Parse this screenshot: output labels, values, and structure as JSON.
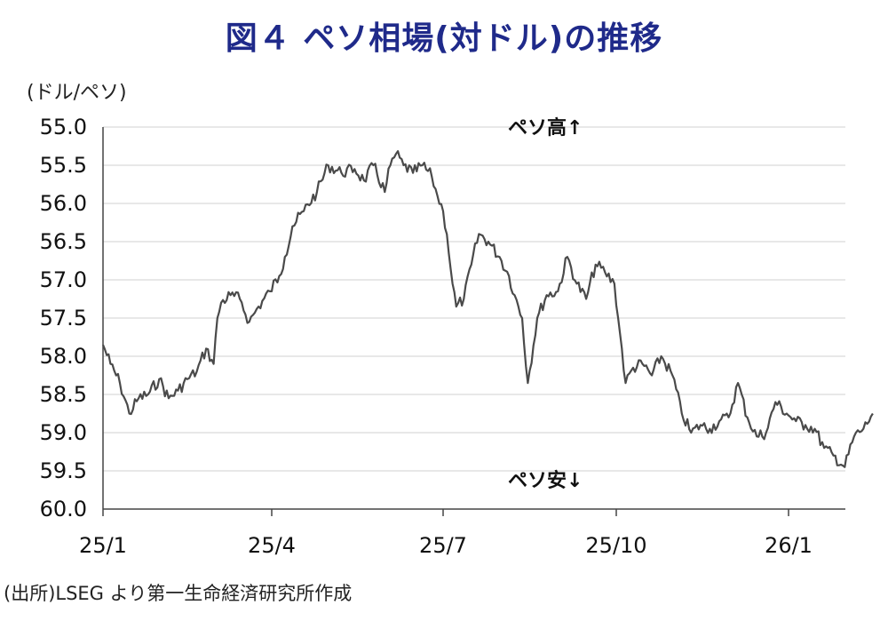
{
  "title": "図４ ペソ相場(対ドル)の推移",
  "unit_label": "(ドル/ペソ)",
  "source": "(出所)LSEG より第一生命経済研究所作成",
  "chart_data": {
    "type": "line",
    "title": "図４ ペソ相場(対ドル)の推移",
    "ylabel": "(ドル/ペソ)",
    "xlabel": "",
    "y_inverted": true,
    "ylim": [
      55.0,
      60.0
    ],
    "y_ticks": [
      "55.0",
      "55.5",
      "56.0",
      "56.5",
      "57.0",
      "57.5",
      "58.0",
      "58.5",
      "59.0",
      "59.5",
      "60.0"
    ],
    "x_ticks": [
      "25/1",
      "25/4",
      "25/7",
      "25/10",
      "26/1"
    ],
    "grid": "horizontal",
    "line_color": "#4a4a4a",
    "annotations": {
      "top": "ペソ高↑",
      "bottom": "ペソ安↓"
    },
    "series": [
      {
        "x": [
          "2025-01-01",
          "2025-01-05",
          "2025-01-10",
          "2025-01-15",
          "2025-01-20",
          "2025-01-25",
          "2025-01-31",
          "2025-02-05",
          "2025-02-10",
          "2025-02-15",
          "2025-02-20",
          "2025-02-25",
          "2025-03-01",
          "2025-03-03",
          "2025-03-05",
          "2025-03-10",
          "2025-03-15",
          "2025-03-20",
          "2025-03-25",
          "2025-03-31",
          "2025-04-05",
          "2025-04-08",
          "2025-04-12",
          "2025-04-18",
          "2025-04-25",
          "2025-05-01",
          "2025-05-08",
          "2025-05-15",
          "2025-05-20",
          "2025-05-25",
          "2025-05-31",
          "2025-06-03",
          "2025-06-06",
          "2025-06-10",
          "2025-06-15",
          "2025-06-20",
          "2025-06-25",
          "2025-06-28",
          "2025-07-01",
          "2025-07-03",
          "2025-07-06",
          "2025-07-08",
          "2025-07-12",
          "2025-07-16",
          "2025-07-20",
          "2025-07-25",
          "2025-07-31",
          "2025-08-05",
          "2025-08-08",
          "2025-08-12",
          "2025-08-15",
          "2025-08-20",
          "2025-08-25",
          "2025-08-31",
          "2025-09-05",
          "2025-09-10",
          "2025-09-15",
          "2025-09-20",
          "2025-09-25",
          "2025-09-30",
          "2025-10-03",
          "2025-10-06",
          "2025-10-10",
          "2025-10-15",
          "2025-10-20",
          "2025-10-25",
          "2025-10-31",
          "2025-11-05",
          "2025-11-10",
          "2025-11-15",
          "2025-11-20",
          "2025-11-25",
          "2025-11-30",
          "2025-12-05",
          "2025-12-10",
          "2025-12-15",
          "2025-12-20",
          "2025-12-25",
          "2025-12-31",
          "2026-01-05",
          "2026-01-10",
          "2026-01-15",
          "2026-01-20",
          "2026-01-25",
          "2026-01-31",
          "2026-02-05",
          "2026-02-10",
          "2026-02-15"
        ],
        "values": [
          57.85,
          58.1,
          58.35,
          58.75,
          58.55,
          58.5,
          58.3,
          58.55,
          58.45,
          58.3,
          58.2,
          57.9,
          58.1,
          57.5,
          57.3,
          57.2,
          57.25,
          57.55,
          57.35,
          57.15,
          56.95,
          56.7,
          56.3,
          56.1,
          55.85,
          55.5,
          55.6,
          55.55,
          55.7,
          55.5,
          55.85,
          55.5,
          55.35,
          55.5,
          55.6,
          55.5,
          55.65,
          55.9,
          56.1,
          56.4,
          57.05,
          57.35,
          57.25,
          56.8,
          56.4,
          56.5,
          56.7,
          56.95,
          57.2,
          57.5,
          58.35,
          57.5,
          57.2,
          57.15,
          56.7,
          57.05,
          57.25,
          56.8,
          56.9,
          57.05,
          57.7,
          58.35,
          58.15,
          58.1,
          58.25,
          58.0,
          58.25,
          58.75,
          59.0,
          58.9,
          58.95,
          58.85,
          58.8,
          58.35,
          58.8,
          59.05,
          59.0,
          58.6,
          58.75,
          58.85,
          58.9,
          58.95,
          59.2,
          59.3,
          59.45,
          59.05,
          58.95,
          58.75
        ]
      }
    ]
  }
}
